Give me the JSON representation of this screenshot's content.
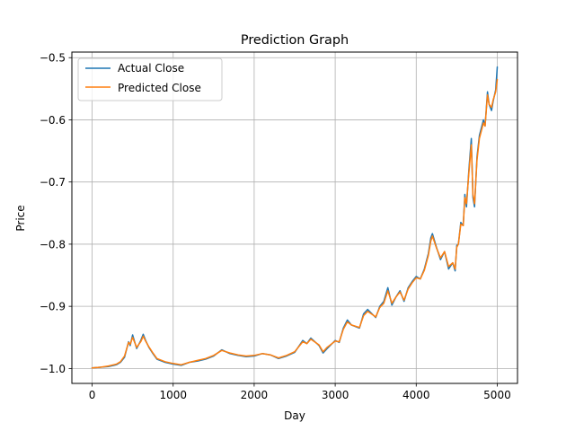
{
  "chart_data": {
    "type": "line",
    "title": "Prediction Graph",
    "xlabel": "Day",
    "ylabel": "Price",
    "xlim": [
      -250,
      5250
    ],
    "ylim": [
      -1.024,
      -0.491
    ],
    "xticks": [
      0,
      1000,
      2000,
      3000,
      4000,
      5000
    ],
    "xtick_labels": [
      "0",
      "1000",
      "2000",
      "3000",
      "4000",
      "5000"
    ],
    "yticks": [
      -1.0,
      -0.9,
      -0.8,
      -0.7,
      -0.6,
      -0.5
    ],
    "ytick_labels": [
      "−1.0",
      "−0.9",
      "−0.8",
      "−0.7",
      "−0.6",
      "−0.5"
    ],
    "grid": true,
    "legend_position": "top-left",
    "series": [
      {
        "name": "Actual Close",
        "color": "#1f77b4",
        "x": [
          0,
          100,
          200,
          300,
          350,
          400,
          450,
          470,
          500,
          550,
          600,
          630,
          660,
          700,
          750,
          800,
          900,
          1000,
          1100,
          1200,
          1300,
          1400,
          1500,
          1600,
          1650,
          1700,
          1800,
          1900,
          2000,
          2100,
          2200,
          2300,
          2400,
          2500,
          2600,
          2650,
          2700,
          2800,
          2850,
          2900,
          3000,
          3050,
          3100,
          3150,
          3200,
          3300,
          3350,
          3400,
          3500,
          3550,
          3600,
          3650,
          3700,
          3750,
          3800,
          3850,
          3900,
          3950,
          4000,
          4050,
          4100,
          4150,
          4180,
          4200,
          4250,
          4300,
          4350,
          4400,
          4450,
          4480,
          4500,
          4520,
          4550,
          4580,
          4600,
          4620,
          4650,
          4680,
          4700,
          4720,
          4750,
          4780,
          4800,
          4830,
          4850,
          4880,
          4900,
          4930,
          4950,
          4980,
          5000
        ],
        "y": [
          -0.999,
          -0.998,
          -0.997,
          -0.994,
          -0.99,
          -0.982,
          -0.957,
          -0.963,
          -0.946,
          -0.968,
          -0.955,
          -0.945,
          -0.955,
          -0.966,
          -0.976,
          -0.985,
          -0.99,
          -0.993,
          -0.995,
          -0.99,
          -0.988,
          -0.985,
          -0.98,
          -0.97,
          -0.973,
          -0.976,
          -0.979,
          -0.981,
          -0.98,
          -0.976,
          -0.978,
          -0.984,
          -0.98,
          -0.974,
          -0.955,
          -0.96,
          -0.951,
          -0.963,
          -0.975,
          -0.968,
          -0.955,
          -0.958,
          -0.935,
          -0.922,
          -0.93,
          -0.935,
          -0.912,
          -0.905,
          -0.918,
          -0.9,
          -0.892,
          -0.87,
          -0.898,
          -0.885,
          -0.875,
          -0.892,
          -0.87,
          -0.86,
          -0.852,
          -0.856,
          -0.84,
          -0.815,
          -0.79,
          -0.783,
          -0.805,
          -0.825,
          -0.812,
          -0.84,
          -0.83,
          -0.843,
          -0.802,
          -0.8,
          -0.765,
          -0.77,
          -0.72,
          -0.74,
          -0.68,
          -0.63,
          -0.725,
          -0.74,
          -0.66,
          -0.625,
          -0.615,
          -0.6,
          -0.61,
          -0.555,
          -0.575,
          -0.585,
          -0.57,
          -0.552,
          -0.515
        ]
      },
      {
        "name": "Predicted Close",
        "color": "#ff7f0e",
        "x": [
          0,
          100,
          200,
          300,
          350,
          400,
          450,
          470,
          500,
          550,
          600,
          630,
          660,
          700,
          750,
          800,
          900,
          1000,
          1100,
          1200,
          1300,
          1400,
          1500,
          1600,
          1650,
          1700,
          1800,
          1900,
          2000,
          2100,
          2200,
          2300,
          2400,
          2500,
          2600,
          2650,
          2700,
          2800,
          2850,
          2900,
          3000,
          3050,
          3100,
          3150,
          3200,
          3300,
          3350,
          3400,
          3500,
          3550,
          3600,
          3650,
          3700,
          3750,
          3800,
          3850,
          3900,
          3950,
          4000,
          4050,
          4100,
          4150,
          4180,
          4200,
          4250,
          4300,
          4350,
          4400,
          4450,
          4480,
          4500,
          4520,
          4550,
          4580,
          4600,
          4620,
          4650,
          4680,
          4700,
          4720,
          4750,
          4780,
          4800,
          4830,
          4850,
          4880,
          4900,
          4930,
          4950,
          4980,
          5000
        ],
        "y": [
          -0.999,
          -0.998,
          -0.996,
          -0.993,
          -0.989,
          -0.98,
          -0.958,
          -0.961,
          -0.95,
          -0.966,
          -0.957,
          -0.948,
          -0.956,
          -0.965,
          -0.975,
          -0.984,
          -0.989,
          -0.992,
          -0.994,
          -0.99,
          -0.987,
          -0.984,
          -0.979,
          -0.971,
          -0.973,
          -0.975,
          -0.978,
          -0.98,
          -0.979,
          -0.976,
          -0.978,
          -0.983,
          -0.979,
          -0.973,
          -0.957,
          -0.96,
          -0.953,
          -0.962,
          -0.973,
          -0.966,
          -0.956,
          -0.957,
          -0.937,
          -0.925,
          -0.93,
          -0.934,
          -0.915,
          -0.908,
          -0.917,
          -0.902,
          -0.895,
          -0.875,
          -0.895,
          -0.885,
          -0.877,
          -0.89,
          -0.872,
          -0.862,
          -0.854,
          -0.856,
          -0.842,
          -0.818,
          -0.795,
          -0.787,
          -0.806,
          -0.822,
          -0.812,
          -0.836,
          -0.83,
          -0.84,
          -0.805,
          -0.8,
          -0.768,
          -0.77,
          -0.725,
          -0.735,
          -0.685,
          -0.64,
          -0.72,
          -0.735,
          -0.665,
          -0.63,
          -0.62,
          -0.605,
          -0.61,
          -0.56,
          -0.575,
          -0.58,
          -0.568,
          -0.555,
          -0.535
        ]
      }
    ]
  }
}
